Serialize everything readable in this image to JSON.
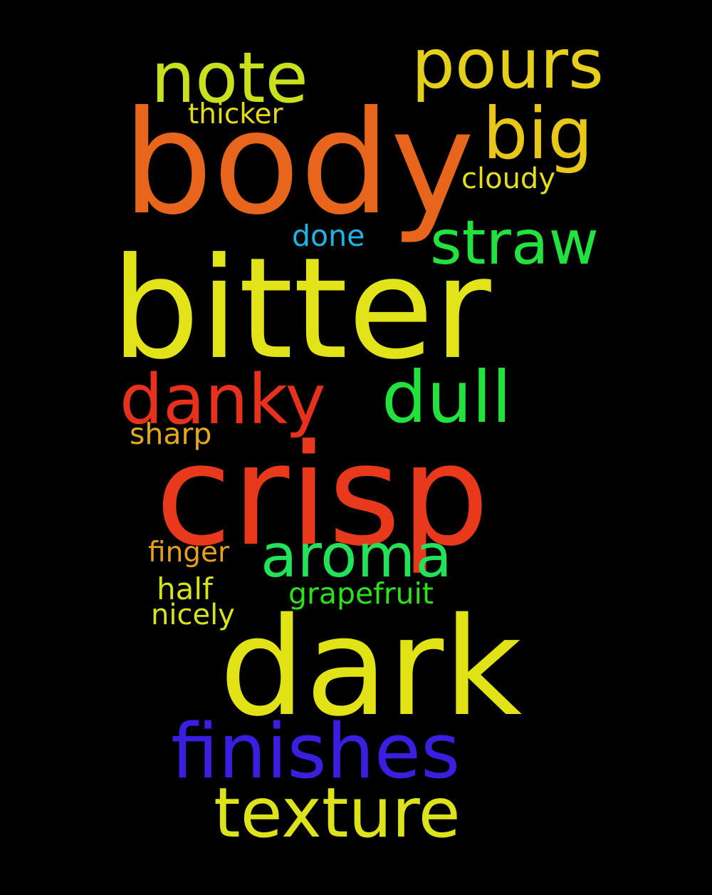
{
  "words": [
    {
      "text": "body",
      "color": "#E8661C"
    },
    {
      "text": "bitter",
      "color": "#E3E31A"
    },
    {
      "text": "crisp",
      "color": "#E8391C"
    },
    {
      "text": "dark",
      "color": "#E1E316"
    },
    {
      "text": "finishes",
      "color": "#3A1FE0"
    },
    {
      "text": "texture",
      "color": "#DDE31A"
    },
    {
      "text": "note",
      "color": "#C9E01C"
    },
    {
      "text": "pours",
      "color": "#E6CF1A"
    },
    {
      "text": "big",
      "color": "#E8C61A"
    },
    {
      "text": "straw",
      "color": "#22E23D"
    },
    {
      "text": "danky",
      "color": "#E6321C"
    },
    {
      "text": "dull",
      "color": "#22E23D"
    },
    {
      "text": "aroma",
      "color": "#22E25A"
    },
    {
      "text": "thicker",
      "color": "#E3DA1C"
    },
    {
      "text": "cloudy",
      "color": "#E3DF1C"
    },
    {
      "text": "done",
      "color": "#1FB4E3"
    },
    {
      "text": "sharp",
      "color": "#E3A91C"
    },
    {
      "text": "finger",
      "color": "#E3A01C"
    },
    {
      "text": "half",
      "color": "#D5E31C"
    },
    {
      "text": "grapefruit",
      "color": "#2FE01C"
    },
    {
      "text": "nicely",
      "color": "#D9E31C"
    }
  ]
}
